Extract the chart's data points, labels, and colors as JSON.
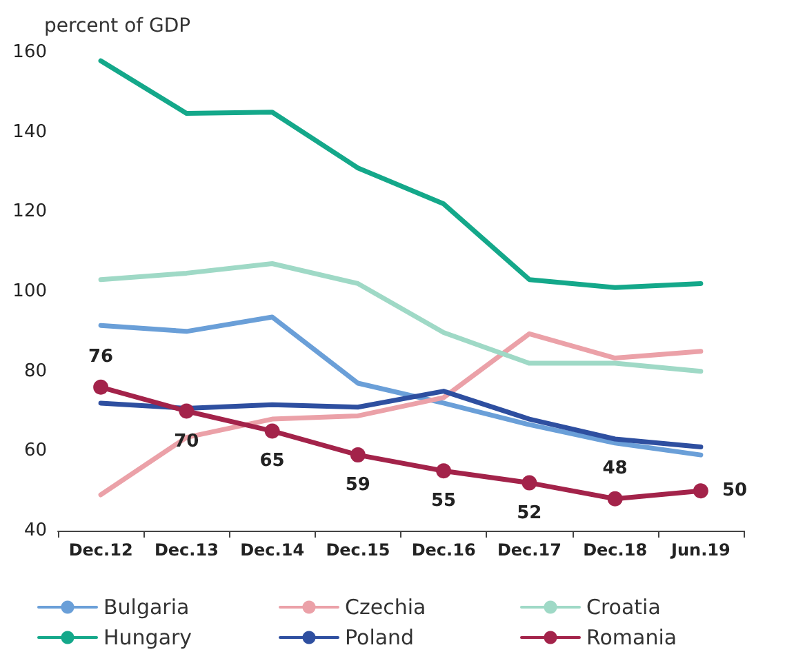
{
  "chart_data": {
    "type": "line",
    "ylabel": "percent of GDP",
    "categories": [
      "Dec.12",
      "Dec.13",
      "Dec.14",
      "Dec.15",
      "Dec.16",
      "Dec.17",
      "Dec.18",
      "Jun.19"
    ],
    "ylim": [
      40,
      160
    ],
    "yticks": [
      40,
      60,
      80,
      100,
      120,
      140,
      160
    ],
    "grid": false,
    "legend": "bottom",
    "line_style": "solid",
    "series": [
      {
        "name": "Bulgaria",
        "color": "#6a9fd8",
        "marker": "none",
        "values": [
          91.5,
          90,
          93.6,
          77,
          72,
          66.6,
          62,
          59
        ]
      },
      {
        "name": "Czechia",
        "color": "#eba1a8",
        "marker": "none",
        "values": [
          49,
          63.4,
          68,
          68.8,
          73.4,
          89.4,
          83.3,
          85
        ]
      },
      {
        "name": "Croatia",
        "color": "#9fd9c6",
        "marker": "none",
        "values": [
          103,
          104.6,
          107,
          102,
          89.7,
          82,
          82,
          80
        ]
      },
      {
        "name": "Hungary",
        "color": "#14a88a",
        "marker": "none",
        "values": [
          157.9,
          144.7,
          145,
          131,
          122,
          103,
          101,
          102
        ]
      },
      {
        "name": "Poland",
        "color": "#2e4fa0",
        "marker": "none",
        "values": [
          72,
          70.7,
          71.6,
          71,
          75,
          68,
          63,
          61
        ]
      },
      {
        "name": "Romania",
        "color": "#a3234a",
        "marker": "circle",
        "values": [
          76,
          70,
          65,
          59,
          55,
          52,
          48,
          50
        ],
        "value_labels": [
          "76",
          "70",
          "65",
          "59",
          "55",
          "52",
          "48",
          "50"
        ]
      }
    ]
  }
}
